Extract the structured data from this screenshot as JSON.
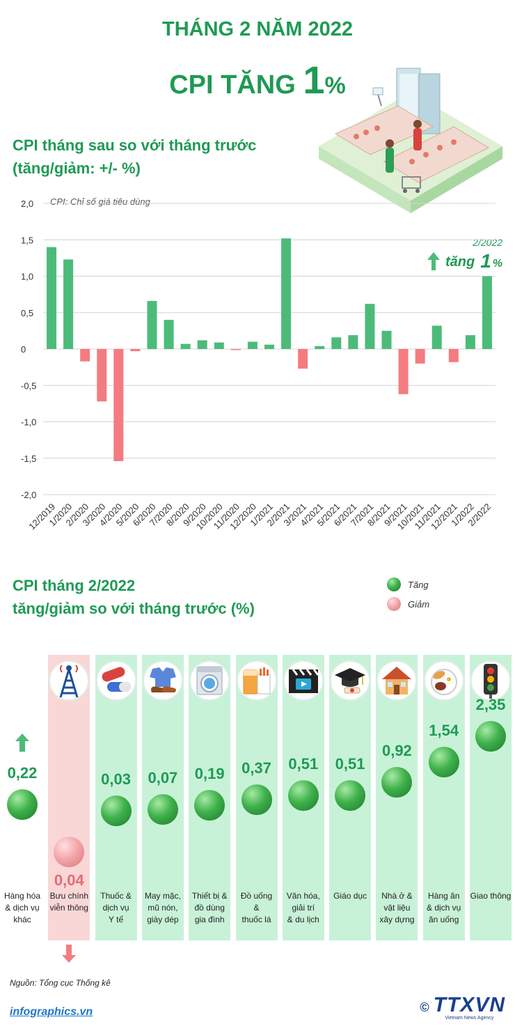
{
  "header": {
    "title_line1": "THÁNG 2 NĂM 2022",
    "title_prefix": "CPI TĂNG ",
    "title_number": "1",
    "title_suffix": "%"
  },
  "section1": {
    "title_line1": "CPI tháng sau so với tháng trước",
    "title_line2": "(tăng/giảm: +/- %)",
    "note": "CPI: Chỉ số giá tiêu dùng",
    "callout_date": "2/2022",
    "callout_text": "tăng",
    "callout_value": "1",
    "callout_unit": "%"
  },
  "chart_data": {
    "type": "bar",
    "title": "",
    "xlabel": "",
    "ylabel": "",
    "ylim": [
      -2.0,
      2.0
    ],
    "y_ticks": [
      "2,0",
      "1,5",
      "1,0",
      "0,5",
      "0",
      "-0,5",
      "-1,0",
      "-1,5",
      "-2,0"
    ],
    "y_tick_values": [
      2.0,
      1.5,
      1.0,
      0.5,
      0,
      -0.5,
      -1.0,
      -1.5,
      -2.0
    ],
    "grid": true,
    "categories": [
      "12/2019",
      "1/2020",
      "2/2020",
      "3/2020",
      "4/2020",
      "5/2020",
      "6/2020",
      "7/2020",
      "8/2020",
      "9/2020",
      "10/2020",
      "11/2020",
      "12/2020",
      "1/2021",
      "2/2021",
      "3/2021",
      "4/2021",
      "5/2021",
      "6/2021",
      "7/2021",
      "8/2021",
      "9/2021",
      "10/2021",
      "11/2021",
      "12/2021",
      "1/2022",
      "2/2022"
    ],
    "values": [
      1.4,
      1.23,
      -0.17,
      -0.72,
      -1.54,
      -0.03,
      0.66,
      0.4,
      0.07,
      0.12,
      0.09,
      -0.01,
      0.1,
      0.06,
      1.52,
      -0.27,
      0.04,
      0.16,
      0.19,
      0.62,
      0.25,
      -0.62,
      -0.2,
      0.32,
      -0.18,
      0.19,
      1.0
    ],
    "colors": {
      "up": "#4cbb7a",
      "down": "#f47c80"
    }
  },
  "section2": {
    "title_line1": "CPI tháng 2/2022",
    "title_line2": "tăng/giảm so với tháng trước (%)",
    "legend_up": "Tăng",
    "legend_down": "Giảm",
    "categories": [
      {
        "icon": "shopping-icon",
        "value": "0,22",
        "direction": "up",
        "label_lines": [
          "Hàng hóa",
          "& dịch vụ",
          "khác"
        ]
      },
      {
        "icon": "antenna-tower-icon",
        "value": "0,04",
        "direction": "down",
        "label_lines": [
          "Bưu chính",
          "viễn thông"
        ]
      },
      {
        "icon": "pill-capsule-icon",
        "value": "0,03",
        "direction": "up",
        "label_lines": [
          "Thuốc &",
          "dịch vụ",
          "Y tế"
        ]
      },
      {
        "icon": "shirt-shoes-icon",
        "value": "0,07",
        "direction": "up",
        "label_lines": [
          "May mặc,",
          "mũ nón,",
          "giày dép"
        ]
      },
      {
        "icon": "washing-machine-icon",
        "value": "0,19",
        "direction": "up",
        "label_lines": [
          "Thiết bị &",
          "đồ dùng",
          "gia đình"
        ]
      },
      {
        "icon": "drink-cigarettes-icon",
        "value": "0,37",
        "direction": "up",
        "label_lines": [
          "Đồ uống",
          "&",
          "thuốc lá"
        ]
      },
      {
        "icon": "clapperboard-icon",
        "value": "0,51",
        "direction": "up",
        "label_lines": [
          "Văn hóa,",
          "giải trí",
          "& du lịch"
        ]
      },
      {
        "icon": "graduation-cap-icon",
        "value": "0,51",
        "direction": "up",
        "label_lines": [
          "Giáo dục"
        ]
      },
      {
        "icon": "house-icon",
        "value": "0,92",
        "direction": "up",
        "label_lines": [
          "Nhà ở &",
          "vật liệu",
          "xây dựng"
        ]
      },
      {
        "icon": "food-plate-icon",
        "value": "1,54",
        "direction": "up",
        "label_lines": [
          "Hàng ăn",
          "& dịch vụ",
          "ăn uống"
        ]
      },
      {
        "icon": "traffic-light-icon",
        "value": "2,35",
        "direction": "up",
        "label_lines": [
          "Giao thông"
        ]
      }
    ]
  },
  "footer": {
    "source": "Nguồn: Tổng cục Thống kê",
    "site": "infographics.vn",
    "copyright": "©",
    "agency": "TTXVN",
    "agency_sub": "Vietnam News Agency"
  }
}
